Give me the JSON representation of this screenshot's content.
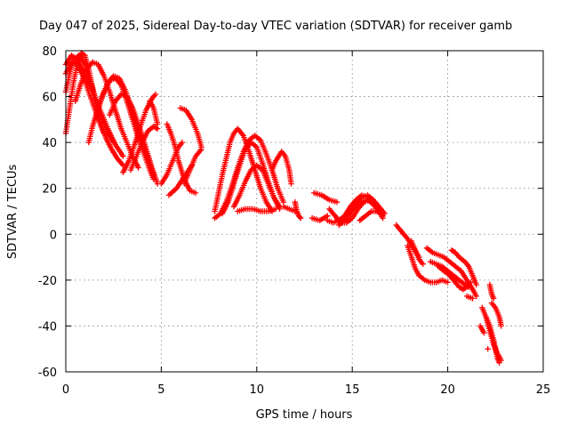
{
  "chart_data": {
    "type": "scatter",
    "title": "Day 047 of 2025, Sidereal Day-to-day VTEC variation (SDTVAR) for receiver gamb",
    "xlabel": "GPS time / hours",
    "ylabel": "SDTVAR / TECUs",
    "xlim": [
      0,
      25
    ],
    "ylim": [
      -60,
      80
    ],
    "xticks": [
      0,
      5,
      10,
      15,
      20,
      25
    ],
    "yticks": [
      -60,
      -40,
      -20,
      0,
      20,
      40,
      60,
      80
    ],
    "grid": true,
    "marker": "+",
    "color": "#ff0000",
    "tracks": [
      [
        [
          0.0,
          44
        ],
        [
          0.2,
          55
        ],
        [
          0.4,
          66
        ],
        [
          0.6,
          74
        ],
        [
          0.8,
          79
        ],
        [
          1.0,
          78
        ],
        [
          1.2,
          72
        ],
        [
          1.4,
          64
        ],
        [
          1.6,
          56
        ],
        [
          1.8,
          49
        ],
        [
          2.0,
          44
        ]
      ],
      [
        [
          0.0,
          62
        ],
        [
          0.2,
          70
        ],
        [
          0.4,
          76
        ],
        [
          0.7,
          78
        ],
        [
          1.0,
          74
        ],
        [
          1.3,
          66
        ],
        [
          1.6,
          58
        ],
        [
          1.9,
          50
        ],
        [
          2.2,
          44
        ],
        [
          2.5,
          40
        ]
      ],
      [
        [
          0.0,
          70
        ],
        [
          0.3,
          75
        ],
        [
          0.6,
          74
        ],
        [
          0.9,
          69
        ],
        [
          1.2,
          62
        ],
        [
          1.5,
          55
        ],
        [
          1.8,
          48
        ],
        [
          2.1,
          42
        ],
        [
          2.4,
          37
        ],
        [
          2.7,
          33
        ],
        [
          3.0,
          30
        ]
      ],
      [
        [
          0.0,
          74
        ],
        [
          0.3,
          78
        ],
        [
          0.6,
          76
        ],
        [
          1.0,
          70
        ],
        [
          1.4,
          62
        ],
        [
          1.8,
          54
        ],
        [
          2.2,
          46
        ],
        [
          2.6,
          39
        ],
        [
          3.0,
          34
        ]
      ],
      [
        [
          0.5,
          58
        ],
        [
          0.8,
          66
        ],
        [
          1.1,
          72
        ],
        [
          1.4,
          75
        ],
        [
          1.7,
          74
        ],
        [
          2.0,
          69
        ],
        [
          2.3,
          62
        ],
        [
          2.6,
          54
        ],
        [
          2.9,
          46
        ],
        [
          3.2,
          40
        ],
        [
          3.5,
          34
        ],
        [
          3.8,
          29
        ]
      ],
      [
        [
          1.2,
          40
        ],
        [
          1.4,
          47
        ],
        [
          1.7,
          55
        ],
        [
          2.0,
          62
        ],
        [
          2.3,
          67
        ],
        [
          2.6,
          68
        ],
        [
          2.9,
          65
        ],
        [
          3.2,
          58
        ],
        [
          3.5,
          50
        ],
        [
          3.8,
          42
        ],
        [
          4.1,
          35
        ],
        [
          4.4,
          28
        ],
        [
          4.6,
          24
        ]
      ],
      [
        [
          1.6,
          52
        ],
        [
          1.9,
          60
        ],
        [
          2.2,
          66
        ],
        [
          2.5,
          69
        ],
        [
          2.8,
          68
        ],
        [
          3.1,
          63
        ],
        [
          3.4,
          56
        ],
        [
          3.7,
          48
        ],
        [
          4.0,
          40
        ],
        [
          4.3,
          33
        ],
        [
          4.6,
          27
        ],
        [
          4.8,
          22
        ]
      ],
      [
        [
          2.3,
          52
        ],
        [
          2.6,
          58
        ],
        [
          2.9,
          61
        ],
        [
          3.2,
          60
        ],
        [
          3.5,
          55
        ],
        [
          3.8,
          48
        ],
        [
          4.1,
          40
        ],
        [
          4.4,
          32
        ],
        [
          4.6,
          26
        ]
      ],
      [
        [
          3.0,
          27
        ],
        [
          3.3,
          32
        ],
        [
          3.6,
          39
        ],
        [
          3.9,
          47
        ],
        [
          4.2,
          54
        ],
        [
          4.5,
          59
        ],
        [
          4.7,
          61
        ]
      ],
      [
        [
          3.4,
          28
        ],
        [
          3.7,
          34
        ],
        [
          4.0,
          40
        ],
        [
          4.3,
          45
        ],
        [
          4.6,
          47
        ],
        [
          4.8,
          46
        ]
      ],
      [
        [
          4.4,
          58
        ],
        [
          4.6,
          55
        ],
        [
          4.8,
          48
        ]
      ],
      [
        [
          5.0,
          22
        ],
        [
          5.3,
          26
        ],
        [
          5.6,
          32
        ],
        [
          5.9,
          38
        ],
        [
          6.1,
          40
        ]
      ],
      [
        [
          5.3,
          48
        ],
        [
          5.5,
          44
        ],
        [
          5.7,
          39
        ],
        [
          5.9,
          32
        ],
        [
          6.2,
          24
        ],
        [
          6.5,
          19
        ],
        [
          6.8,
          18
        ]
      ],
      [
        [
          6.0,
          55
        ],
        [
          6.3,
          54
        ],
        [
          6.6,
          50
        ],
        [
          6.9,
          44
        ],
        [
          7.1,
          38
        ]
      ],
      [
        [
          6.2,
          22
        ],
        [
          6.5,
          28
        ],
        [
          6.8,
          34
        ],
        [
          7.1,
          37
        ]
      ],
      [
        [
          5.4,
          17
        ],
        [
          5.8,
          20
        ],
        [
          6.2,
          25
        ],
        [
          6.6,
          30
        ]
      ],
      [
        [
          7.8,
          10
        ],
        [
          8.0,
          18
        ],
        [
          8.2,
          26
        ],
        [
          8.4,
          33
        ],
        [
          8.6,
          40
        ],
        [
          8.8,
          44
        ],
        [
          9.0,
          46
        ],
        [
          9.3,
          43
        ],
        [
          9.6,
          36
        ],
        [
          9.9,
          28
        ],
        [
          10.2,
          20
        ],
        [
          10.5,
          14
        ],
        [
          10.8,
          10
        ]
      ],
      [
        [
          7.8,
          7
        ],
        [
          8.1,
          9
        ],
        [
          8.4,
          14
        ],
        [
          8.7,
          21
        ],
        [
          9.0,
          29
        ],
        [
          9.3,
          36
        ],
        [
          9.6,
          41
        ],
        [
          9.9,
          43
        ],
        [
          10.2,
          41
        ],
        [
          10.5,
          35
        ],
        [
          10.8,
          28
        ],
        [
          11.1,
          20
        ],
        [
          11.4,
          14
        ]
      ],
      [
        [
          8.2,
          9
        ],
        [
          8.5,
          14
        ],
        [
          8.8,
          22
        ],
        [
          9.1,
          30
        ],
        [
          9.4,
          37
        ],
        [
          9.7,
          40
        ],
        [
          10.0,
          38
        ],
        [
          10.3,
          31
        ],
        [
          10.6,
          23
        ],
        [
          10.9,
          16
        ],
        [
          11.2,
          11
        ]
      ],
      [
        [
          8.8,
          12
        ],
        [
          9.1,
          17
        ],
        [
          9.4,
          23
        ],
        [
          9.7,
          28
        ],
        [
          10.0,
          30
        ],
        [
          10.3,
          28
        ],
        [
          10.6,
          22
        ],
        [
          10.9,
          16
        ],
        [
          11.2,
          12
        ]
      ],
      [
        [
          9.0,
          10
        ],
        [
          9.4,
          11
        ],
        [
          9.8,
          11
        ],
        [
          10.2,
          10
        ],
        [
          10.6,
          10
        ],
        [
          11.0,
          11
        ]
      ],
      [
        [
          10.8,
          28
        ],
        [
          11.0,
          32
        ],
        [
          11.3,
          36
        ],
        [
          11.5,
          34
        ],
        [
          11.7,
          28
        ],
        [
          11.8,
          22
        ]
      ],
      [
        [
          11.4,
          12
        ],
        [
          11.7,
          11
        ],
        [
          12.0,
          10
        ]
      ],
      [
        [
          12.0,
          14
        ],
        [
          12.1,
          10
        ],
        [
          12.2,
          8
        ],
        [
          12.3,
          7
        ]
      ],
      [
        [
          13.0,
          18
        ],
        [
          13.4,
          17
        ],
        [
          13.8,
          15
        ],
        [
          14.2,
          14
        ]
      ],
      [
        [
          12.9,
          7
        ],
        [
          13.3,
          6
        ],
        [
          13.7,
          8
        ]
      ],
      [
        [
          13.7,
          6
        ],
        [
          14.0,
          5
        ],
        [
          14.3,
          6
        ],
        [
          14.6,
          8
        ],
        [
          14.9,
          10
        ],
        [
          15.2,
          12
        ],
        [
          15.5,
          14
        ],
        [
          15.8,
          15
        ],
        [
          16.1,
          13
        ],
        [
          16.4,
          10
        ]
      ],
      [
        [
          13.8,
          11
        ],
        [
          14.1,
          8
        ],
        [
          14.4,
          5
        ],
        [
          14.7,
          5
        ],
        [
          15.0,
          7
        ],
        [
          15.3,
          11
        ],
        [
          15.6,
          14
        ],
        [
          15.9,
          15
        ],
        [
          16.2,
          13
        ],
        [
          16.5,
          10
        ]
      ],
      [
        [
          14.3,
          4
        ],
        [
          14.6,
          6
        ],
        [
          14.9,
          9
        ],
        [
          15.2,
          13
        ],
        [
          15.5,
          16
        ],
        [
          15.8,
          17
        ],
        [
          16.1,
          15
        ],
        [
          16.4,
          12
        ],
        [
          16.7,
          9
        ]
      ],
      [
        [
          14.6,
          8
        ],
        [
          14.9,
          12
        ],
        [
          15.2,
          15
        ],
        [
          15.5,
          17
        ],
        [
          15.8,
          16
        ],
        [
          16.1,
          13
        ],
        [
          16.4,
          10
        ],
        [
          16.6,
          7
        ]
      ],
      [
        [
          15.4,
          6
        ],
        [
          15.7,
          8
        ],
        [
          16.0,
          10
        ],
        [
          16.3,
          10
        ],
        [
          16.6,
          8
        ]
      ],
      [
        [
          17.3,
          4
        ],
        [
          17.6,
          1
        ],
        [
          17.9,
          -2
        ],
        [
          18.2,
          -6
        ],
        [
          18.5,
          -10
        ]
      ],
      [
        [
          17.9,
          -5
        ],
        [
          18.1,
          -10
        ],
        [
          18.3,
          -15
        ],
        [
          18.5,
          -18
        ],
        [
          18.8,
          -20
        ],
        [
          19.1,
          -21
        ],
        [
          19.4,
          -21
        ],
        [
          19.7,
          -20
        ],
        [
          20.0,
          -21
        ]
      ],
      [
        [
          18.1,
          -3
        ],
        [
          18.3,
          -7
        ],
        [
          18.5,
          -11
        ],
        [
          18.7,
          -13
        ]
      ],
      [
        [
          18.9,
          -6
        ],
        [
          19.2,
          -8
        ],
        [
          19.5,
          -9
        ],
        [
          19.8,
          -10
        ],
        [
          20.1,
          -12
        ],
        [
          20.4,
          -14
        ],
        [
          20.7,
          -16
        ],
        [
          21.0,
          -20
        ],
        [
          21.3,
          -24
        ],
        [
          21.5,
          -27
        ]
      ],
      [
        [
          19.1,
          -12
        ],
        [
          19.4,
          -13
        ],
        [
          19.7,
          -14
        ],
        [
          20.0,
          -16
        ],
        [
          20.3,
          -18
        ],
        [
          20.6,
          -20
        ],
        [
          20.9,
          -22
        ],
        [
          21.1,
          -23
        ]
      ],
      [
        [
          19.5,
          -14
        ],
        [
          19.8,
          -16
        ],
        [
          20.1,
          -18
        ],
        [
          20.4,
          -21
        ],
        [
          20.6,
          -23
        ],
        [
          20.8,
          -24
        ],
        [
          21.0,
          -23
        ],
        [
          21.2,
          -21
        ]
      ],
      [
        [
          20.2,
          -7
        ],
        [
          20.4,
          -8
        ],
        [
          20.6,
          -10
        ],
        [
          20.9,
          -12
        ],
        [
          21.1,
          -14
        ],
        [
          21.3,
          -18
        ],
        [
          21.5,
          -22
        ]
      ],
      [
        [
          21.0,
          -27
        ],
        [
          21.3,
          -28
        ]
      ],
      [
        [
          22.2,
          -22
        ],
        [
          22.3,
          -26
        ],
        [
          22.4,
          -28
        ]
      ],
      [
        [
          21.8,
          -32
        ],
        [
          22.0,
          -36
        ],
        [
          22.2,
          -40
        ],
        [
          22.4,
          -46
        ],
        [
          22.5,
          -50
        ],
        [
          22.6,
          -54
        ],
        [
          22.7,
          -56
        ]
      ],
      [
        [
          22.0,
          -36
        ],
        [
          22.2,
          -42
        ],
        [
          22.4,
          -48
        ],
        [
          22.6,
          -52
        ],
        [
          22.8,
          -55
        ]
      ],
      [
        [
          22.3,
          -30
        ],
        [
          22.5,
          -32
        ],
        [
          22.7,
          -36
        ],
        [
          22.8,
          -40
        ]
      ],
      [
        [
          21.7,
          -40
        ],
        [
          21.9,
          -43
        ]
      ],
      [
        [
          22.1,
          -50
        ]
      ]
    ]
  }
}
